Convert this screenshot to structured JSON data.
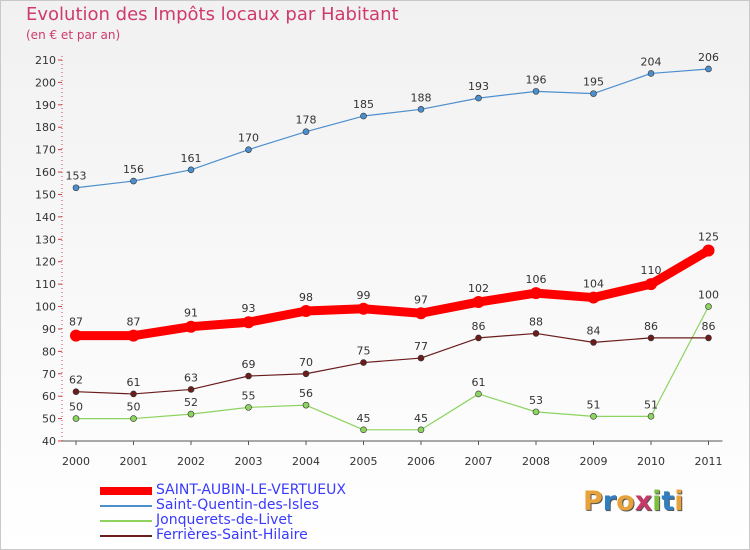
{
  "chart_data": {
    "type": "line",
    "title": "Evolution des Impôts locaux par Habitant",
    "subtitle": "(en € et par an)",
    "x": [
      "2000",
      "2001",
      "2002",
      "2003",
      "2004",
      "2005",
      "2006",
      "2007",
      "2008",
      "2009",
      "2010",
      "2011"
    ],
    "ylim": [
      40,
      210
    ],
    "yticks": [
      40,
      50,
      60,
      70,
      80,
      90,
      100,
      110,
      120,
      130,
      140,
      150,
      160,
      170,
      180,
      190,
      200,
      210
    ],
    "grid": false,
    "legend_position": "bottom-left",
    "series": [
      {
        "name": "SAINT-AUBIN-LE-VERTUEUX",
        "color": "#ff0000",
        "values": [
          87,
          87,
          91,
          93,
          98,
          99,
          97,
          102,
          106,
          104,
          110,
          125
        ]
      },
      {
        "name": "Saint-Quentin-des-Isles",
        "color": "#4d8fcd",
        "values": [
          153,
          156,
          161,
          170,
          178,
          185,
          188,
          193,
          196,
          195,
          204,
          206
        ]
      },
      {
        "name": "Jonquerets-de-Livet",
        "color": "#8dd35f",
        "values": [
          50,
          50,
          52,
          55,
          56,
          45,
          45,
          61,
          53,
          51,
          51,
          100
        ]
      },
      {
        "name": "Ferrières-Saint-Hilaire",
        "color": "#6b1c1c",
        "values": [
          62,
          61,
          63,
          69,
          70,
          75,
          77,
          86,
          88,
          84,
          86,
          86
        ]
      }
    ]
  },
  "branding": {
    "logo_text": "Proxiti",
    "logo_colors": [
      "#e8a23c",
      "#2f7fc1",
      "#e8a23c",
      "#c63a6a",
      "#7fbf3f",
      "#2f7fc1",
      "#e8a23c"
    ]
  }
}
